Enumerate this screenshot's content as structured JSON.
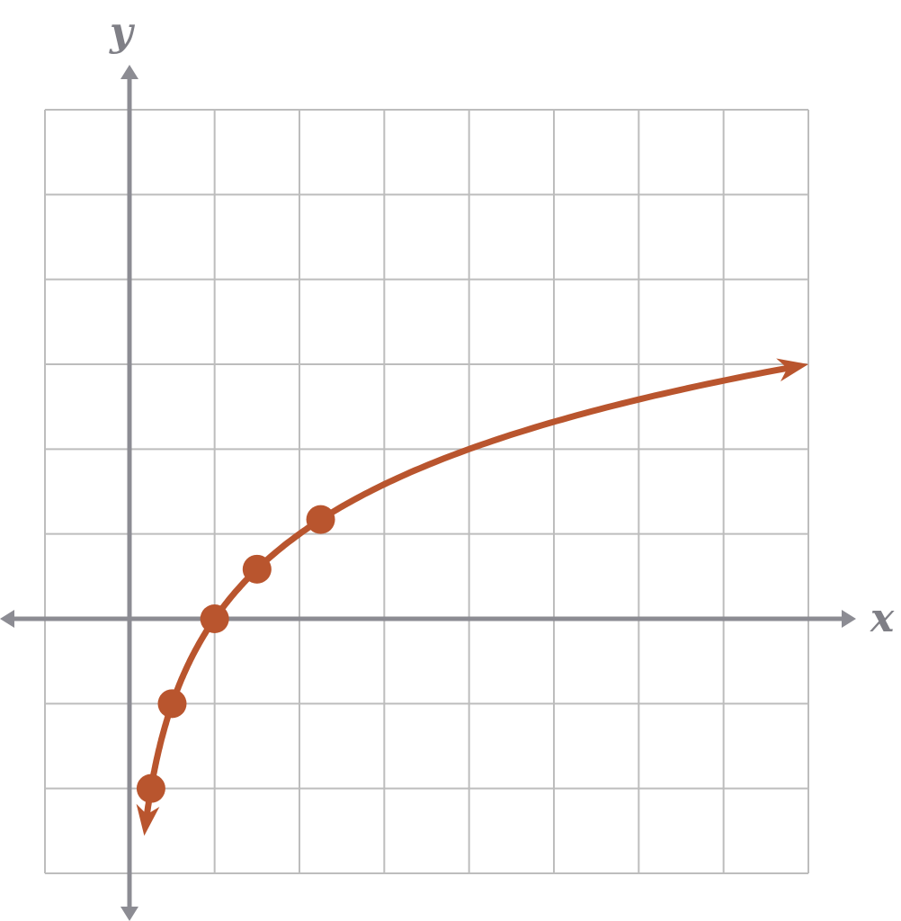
{
  "chart_data": {
    "type": "line",
    "title": "",
    "xlabel": "x",
    "ylabel": "y",
    "grid": true,
    "xlim": [
      -1,
      8
    ],
    "ylim": [
      -3,
      6
    ],
    "x_ticks_labeled": false,
    "y_ticks_labeled": false,
    "series": [
      {
        "function": "log2(x)",
        "color": "#b9552e",
        "points": [
          {
            "x": 0.25,
            "y": -2
          },
          {
            "x": 0.5,
            "y": -1
          },
          {
            "x": 1,
            "y": 0
          },
          {
            "x": 1.5,
            "y": 0.585
          },
          {
            "x": 2.25,
            "y": 1.17
          }
        ],
        "curve_x_range": [
          0.17,
          8
        ],
        "arrow_ends": true
      }
    ],
    "axis_color": "#8c8c93",
    "grid_color": "#bdbdbd"
  }
}
